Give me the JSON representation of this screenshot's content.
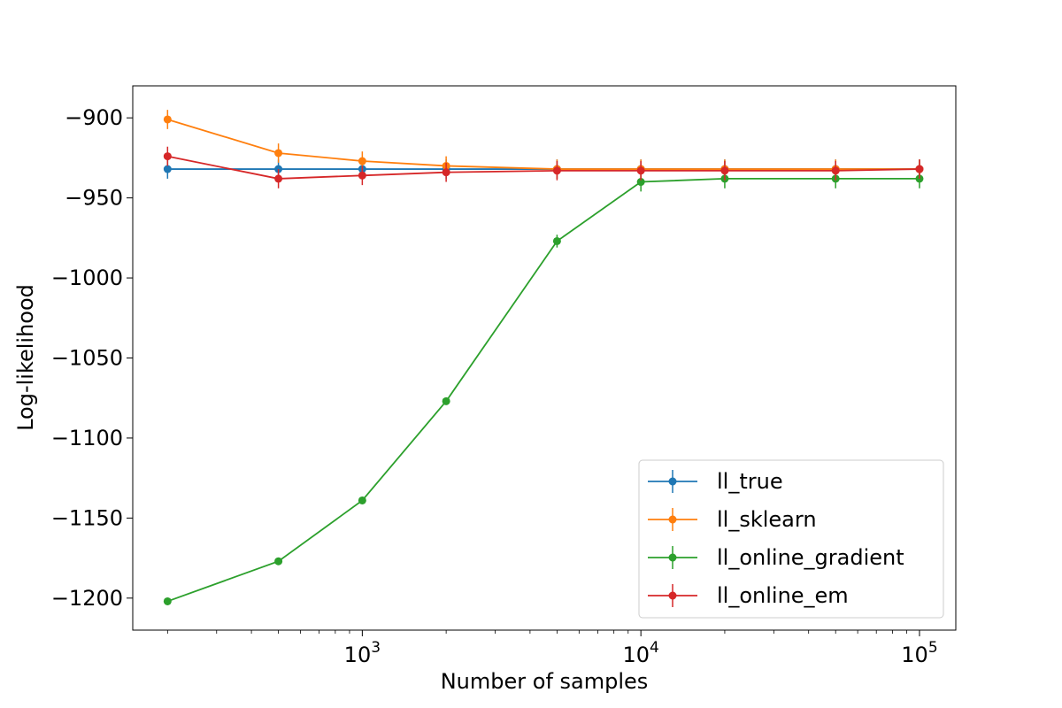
{
  "chart_data": {
    "type": "line",
    "title": "",
    "xlabel": "Number of samples",
    "ylabel": "Log-likelihood",
    "x_scale": "log",
    "xlim": [
      150,
      135000
    ],
    "ylim": [
      -1220,
      -880
    ],
    "grid": false,
    "legend_position": "lower-right",
    "x": [
      200,
      500,
      1000,
      2000,
      5000,
      10000,
      20000,
      50000,
      100000
    ],
    "x_ticks": [
      {
        "value": 1000,
        "base": "10",
        "exp": "3"
      },
      {
        "value": 10000,
        "base": "10",
        "exp": "4"
      },
      {
        "value": 100000,
        "base": "10",
        "exp": "5"
      }
    ],
    "y_ticks": [
      {
        "value": -900,
        "label": "−900"
      },
      {
        "value": -950,
        "label": "−950"
      },
      {
        "value": -1000,
        "label": "−1000"
      },
      {
        "value": -1050,
        "label": "−1050"
      },
      {
        "value": -1100,
        "label": "−1100"
      },
      {
        "value": -1150,
        "label": "−1150"
      },
      {
        "value": -1200,
        "label": "−1200"
      }
    ],
    "series": [
      {
        "name": "ll_true",
        "color": "#1f77b4",
        "values": [
          -932,
          -932,
          -932,
          -932,
          -932,
          -932,
          -932,
          -932,
          -932
        ],
        "errors": [
          6,
          6,
          6,
          6,
          6,
          6,
          6,
          6,
          6
        ]
      },
      {
        "name": "ll_sklearn",
        "color": "#ff7f0e",
        "values": [
          -901,
          -922,
          -927,
          -930,
          -932,
          -932,
          -932,
          -932,
          -932
        ],
        "errors": [
          6,
          6,
          6,
          6,
          6,
          6,
          6,
          6,
          6
        ]
      },
      {
        "name": "ll_online_gradient",
        "color": "#2ca02c",
        "values": [
          -1202,
          -1177,
          -1139,
          -1077,
          -977,
          -940,
          -938,
          -938,
          -938
        ],
        "errors": [
          1,
          1,
          1,
          2,
          4,
          6,
          6,
          6,
          6
        ]
      },
      {
        "name": "ll_online_em",
        "color": "#d62728",
        "values": [
          -924,
          -938,
          -936,
          -934,
          -933,
          -933,
          -933,
          -933,
          -932
        ],
        "errors": [
          6,
          6,
          6,
          6,
          6,
          6,
          6,
          6,
          6
        ]
      }
    ]
  }
}
